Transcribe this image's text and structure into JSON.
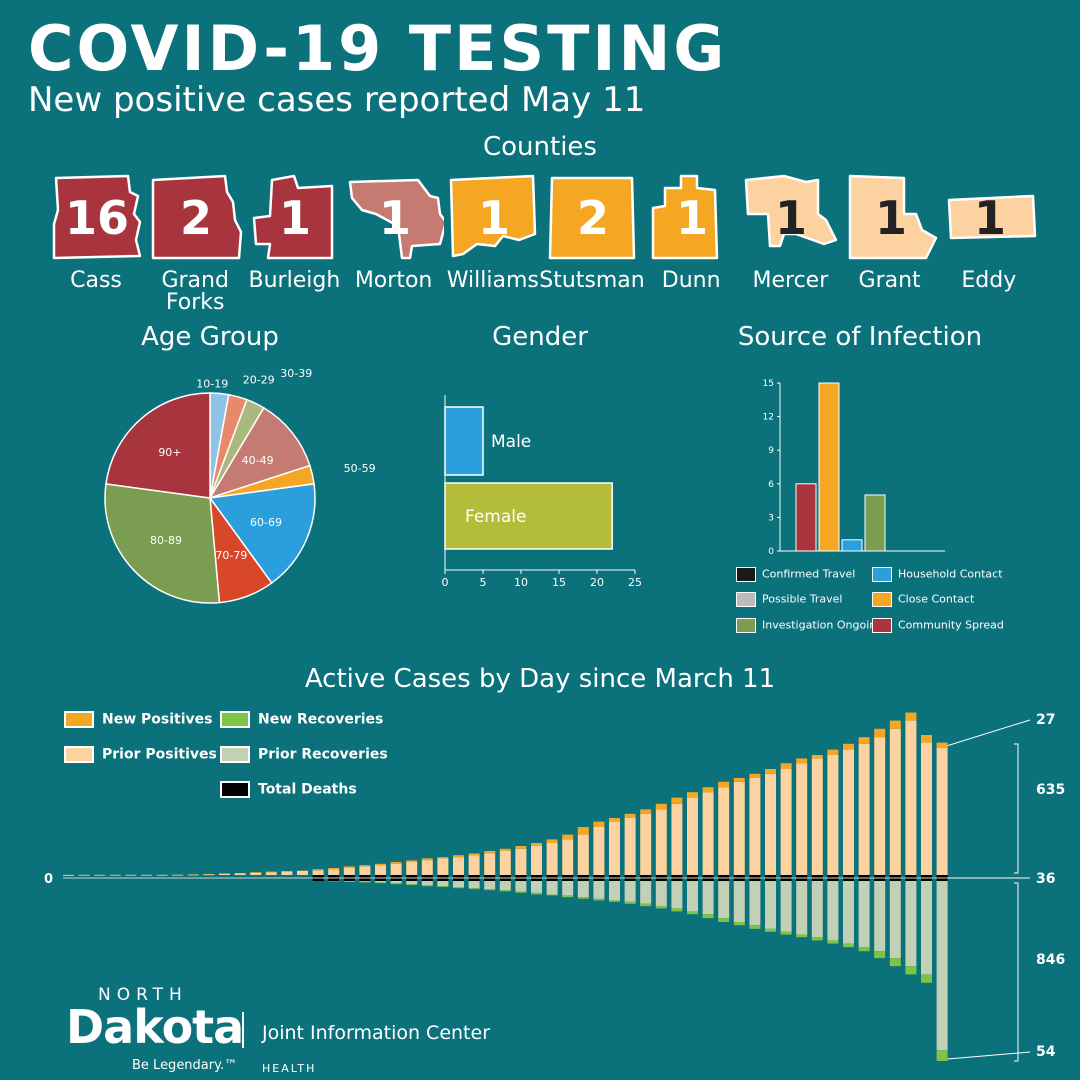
{
  "header": {
    "title": "COVID-19 TESTING",
    "subtitle": "New positive cases reported May 11"
  },
  "colors": {
    "background": "#0b717b",
    "dark_red": "#a8353e",
    "mauve": "#c57a72",
    "orange": "#f5a623",
    "peach": "#fbd2a0",
    "blue": "#2b9fdb",
    "light_blue": "#8fc3e6",
    "salmon": "#e8896b",
    "sage": "#a9b97e",
    "green": "#7a9d52",
    "bright_green": "#7cc444",
    "red_orange": "#d9472b",
    "olive": "#b3bd3a",
    "gray_green": "#c2d0b6",
    "black": "#1a1a1a",
    "gray": "#bbbbbb"
  },
  "counties": {
    "title": "Counties",
    "items": [
      {
        "name": "Cass",
        "count": "16",
        "color": "#a8353e",
        "text_color": "#ffffff",
        "icon": "cass-county-shape"
      },
      {
        "name": "Grand Forks",
        "count": "2",
        "color": "#a8353e",
        "text_color": "#ffffff",
        "icon": "grand-forks-county-shape"
      },
      {
        "name": "Burleigh",
        "count": "1",
        "color": "#a8353e",
        "text_color": "#ffffff",
        "icon": "burleigh-county-shape"
      },
      {
        "name": "Morton",
        "count": "1",
        "color": "#c57a72",
        "text_color": "#ffffff",
        "icon": "morton-county-shape"
      },
      {
        "name": "Williams",
        "count": "1",
        "color": "#f5a623",
        "text_color": "#ffffff",
        "icon": "williams-county-shape"
      },
      {
        "name": "Stutsman",
        "count": "2",
        "color": "#f5a623",
        "text_color": "#ffffff",
        "icon": "stutsman-county-shape"
      },
      {
        "name": "Dunn",
        "count": "1",
        "color": "#f5a623",
        "text_color": "#ffffff",
        "icon": "dunn-county-shape"
      },
      {
        "name": "Mercer",
        "count": "1",
        "color": "#fbd2a0",
        "text_color": "#222222",
        "icon": "mercer-county-shape"
      },
      {
        "name": "Grant",
        "count": "1",
        "color": "#fbd2a0",
        "text_color": "#222222",
        "icon": "grant-county-shape"
      },
      {
        "name": "Eddy",
        "count": "1",
        "color": "#fbd2a0",
        "text_color": "#222222",
        "icon": "eddy-county-shape"
      }
    ]
  },
  "chart_data": [
    {
      "type": "pie",
      "title": "Age Group",
      "labels": [
        "10-19",
        "20-29",
        "30-39",
        "40-49",
        "50-59",
        "60-69",
        "70-79",
        "80-89",
        "90+"
      ],
      "values": [
        1,
        1,
        1,
        4,
        1,
        6,
        3,
        10,
        8
      ],
      "colors": [
        "#8fc3e6",
        "#e8896b",
        "#a9b97e",
        "#c57a72",
        "#f5a623",
        "#2b9fdb",
        "#d9472b",
        "#7a9d52",
        "#a8353e"
      ]
    },
    {
      "type": "bar",
      "orientation": "horizontal",
      "title": "Gender",
      "categories": [
        "Male",
        "Female"
      ],
      "values": [
        5,
        22
      ],
      "colors": [
        "#2b9fdb",
        "#b3bd3a"
      ],
      "xlim": [
        0,
        25
      ],
      "xticks": [
        "0",
        "5",
        "10",
        "15",
        "20",
        "25"
      ]
    },
    {
      "type": "bar",
      "title": "Source of Infection",
      "categories": [
        "Community Spread",
        "Close Contact",
        "Household Contact",
        "Investigation Ongoing",
        "Confirmed Travel",
        "Possible Travel"
      ],
      "values": [
        6,
        15,
        1,
        5,
        0,
        0
      ],
      "colors": [
        "#a8353e",
        "#f5a623",
        "#2b9fdb",
        "#7a9d52",
        "#1a1a1a",
        "#bbbbbb"
      ],
      "ylim": [
        0,
        15
      ],
      "yticks": [
        "0",
        "3",
        "6",
        "9",
        "12",
        "15"
      ],
      "legend": [
        {
          "label": "Confirmed Travel",
          "color": "#1a1a1a"
        },
        {
          "label": "Household Contact",
          "color": "#2b9fdb"
        },
        {
          "label": "Possible Travel",
          "color": "#bbbbbb"
        },
        {
          "label": "Close Contact",
          "color": "#f5a623"
        },
        {
          "label": "Investigation Ongoing",
          "color": "#7a9d52"
        },
        {
          "label": "Community Spread",
          "color": "#a8353e"
        }
      ]
    },
    {
      "type": "bar",
      "stacked": true,
      "diverging": true,
      "title": "Active Cases by Day since March 11",
      "zero_label": "0",
      "legend": [
        {
          "label": "New Positives",
          "color": "#f5a623"
        },
        {
          "label": "Prior Positives",
          "color": "#fbd2a0"
        },
        {
          "label": "New Recoveries",
          "color": "#7cc444"
        },
        {
          "label": "Prior Recoveries",
          "color": "#c2d0b6"
        },
        {
          "label": "Total Deaths",
          "color": "#000000"
        }
      ],
      "latest": {
        "new_positives": "27",
        "prior_positives": "635",
        "total_deaths": "36",
        "prior_recoveries": "846",
        "new_recoveries": "54"
      },
      "series": [
        {
          "name": "New Positives",
          "values": [
            1,
            0,
            0,
            0,
            0,
            0,
            0,
            1,
            1,
            2,
            3,
            2,
            4,
            3,
            3,
            2,
            7,
            6,
            8,
            6,
            7,
            9,
            8,
            10,
            6,
            10,
            9,
            12,
            11,
            14,
            15,
            18,
            24,
            38,
            27,
            18,
            21,
            22,
            28,
            31,
            27,
            25,
            27,
            19,
            21,
            24,
            29,
            24,
            17,
            27,
            29,
            33,
            42,
            41,
            40,
            38,
            27
          ]
        },
        {
          "name": "Prior Positives",
          "values": [
            0,
            1,
            1,
            1,
            1,
            1,
            1,
            1,
            2,
            3,
            5,
            8,
            10,
            14,
            17,
            20,
            22,
            29,
            35,
            43,
            49,
            56,
            65,
            73,
            83,
            89,
            99,
            108,
            120,
            131,
            145,
            160,
            178,
            202,
            240,
            267,
            285,
            306,
            328,
            356,
            387,
            414,
            439,
            466,
            485,
            506,
            530,
            559,
            583,
            600,
            627,
            656,
            689,
            731,
            772,
            662,
            635
          ]
        },
        {
          "name": "Total Deaths",
          "values": [
            0,
            0,
            0,
            0,
            0,
            0,
            0,
            0,
            0,
            0,
            0,
            0,
            0,
            0,
            0,
            0,
            1,
            1,
            2,
            3,
            3,
            3,
            3,
            3,
            3,
            4,
            5,
            7,
            8,
            9,
            9,
            9,
            9,
            9,
            9,
            9,
            9,
            9,
            9,
            10,
            10,
            13,
            14,
            17,
            17,
            19,
            19,
            22,
            25,
            28,
            31,
            31,
            31,
            33,
            34,
            35,
            36
          ]
        },
        {
          "name": "New Recoveries",
          "values": [
            0,
            0,
            0,
            0,
            0,
            0,
            0,
            0,
            0,
            0,
            0,
            0,
            0,
            0,
            0,
            0,
            0,
            2,
            1,
            3,
            4,
            5,
            4,
            6,
            4,
            6,
            5,
            5,
            6,
            7,
            8,
            5,
            9,
            8,
            8,
            7,
            10,
            12,
            11,
            15,
            14,
            20,
            19,
            16,
            18,
            15,
            14,
            13,
            16,
            16,
            18,
            20,
            35,
            40,
            41,
            42,
            54
          ]
        },
        {
          "name": "Prior Recoveries",
          "values": [
            0,
            0,
            0,
            0,
            0,
            0,
            0,
            0,
            0,
            0,
            0,
            0,
            0,
            0,
            0,
            0,
            0,
            1,
            3,
            4,
            7,
            11,
            16,
            20,
            26,
            30,
            36,
            41,
            46,
            52,
            59,
            67,
            72,
            81,
            89,
            97,
            104,
            114,
            126,
            137,
            152,
            166,
            186,
            205,
            221,
            239,
            254,
            268,
            281,
            297,
            313,
            331,
            351,
            386,
            426,
            467,
            846
          ]
        }
      ]
    }
  ],
  "logo": {
    "north": "NORTH",
    "dakota": "Dakota",
    "tagline": "Be Legendary.™",
    "jic": "Joint Information Center",
    "health": "HEALTH"
  }
}
